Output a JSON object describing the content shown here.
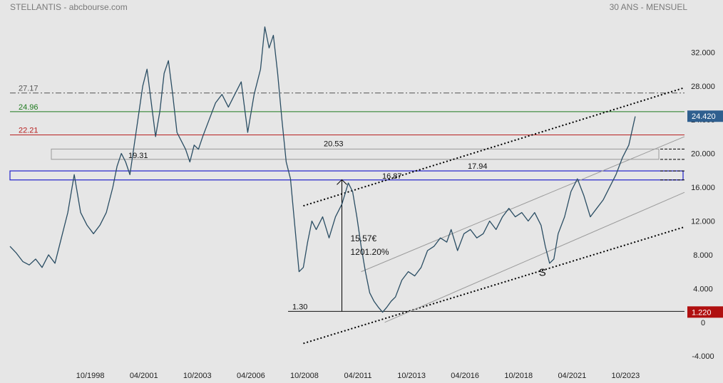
{
  "header": {
    "left": "STELLANTIS - abcbourse.com",
    "right": "30 ANS - MENSUEL"
  },
  "chart_data": {
    "type": "line",
    "ylim": [
      -5.5,
      36.5
    ],
    "xlim": [
      1995.0,
      2026.5
    ],
    "y_ticks": [
      {
        "value": 32,
        "label": "32.000"
      },
      {
        "value": 28,
        "label": "28.000"
      },
      {
        "value": 24,
        "label": "24.000"
      },
      {
        "value": 20,
        "label": "20.000"
      },
      {
        "value": 16,
        "label": "16.000"
      },
      {
        "value": 12,
        "label": "12.000"
      },
      {
        "value": 8,
        "label": "8.000"
      },
      {
        "value": 4,
        "label": "4.000"
      },
      {
        "value": 0,
        "label": "0"
      },
      {
        "value": -4,
        "label": "-4.000"
      }
    ],
    "x_ticks": [
      {
        "value": 1998.75,
        "label": "10/1998"
      },
      {
        "value": 2001.25,
        "label": "04/2001"
      },
      {
        "value": 2003.75,
        "label": "10/2003"
      },
      {
        "value": 2006.25,
        "label": "04/2006"
      },
      {
        "value": 2008.75,
        "label": "10/2008"
      },
      {
        "value": 2011.25,
        "label": "04/2011"
      },
      {
        "value": 2013.75,
        "label": "10/2013"
      },
      {
        "value": 2016.25,
        "label": "04/2016"
      },
      {
        "value": 2018.75,
        "label": "10/2018"
      },
      {
        "value": 2021.25,
        "label": "04/2021"
      },
      {
        "value": 2023.75,
        "label": "10/2023"
      }
    ],
    "series": [
      {
        "color": "#2a4d63",
        "x": [
          1995.0,
          1995.3,
          1995.6,
          1995.9,
          1996.2,
          1996.5,
          1996.8,
          1997.1,
          1997.4,
          1997.7,
          1998.0,
          1998.3,
          1998.6,
          1998.9,
          1999.2,
          1999.5,
          1999.8,
          2000.0,
          2000.2,
          2000.4,
          2000.6,
          2000.8,
          2001.0,
          2001.2,
          2001.4,
          2001.6,
          2001.8,
          2002.0,
          2002.2,
          2002.4,
          2002.6,
          2002.8,
          2003.0,
          2003.2,
          2003.4,
          2003.6,
          2003.8,
          2004.0,
          2004.3,
          2004.6,
          2004.9,
          2005.2,
          2005.5,
          2005.8,
          2006.1,
          2006.4,
          2006.7,
          2006.9,
          2007.1,
          2007.3,
          2007.5,
          2007.7,
          2007.9,
          2008.1,
          2008.3,
          2008.5,
          2008.7,
          2008.9,
          2009.1,
          2009.3,
          2009.6,
          2009.9,
          2010.2,
          2010.5,
          2010.8,
          2011.0,
          2011.2,
          2011.4,
          2011.6,
          2011.8,
          2012.0,
          2012.2,
          2012.4,
          2012.6,
          2012.8,
          2013.0,
          2013.3,
          2013.6,
          2013.9,
          2014.2,
          2014.5,
          2014.8,
          2015.1,
          2015.4,
          2015.6,
          2015.9,
          2016.2,
          2016.5,
          2016.8,
          2017.1,
          2017.4,
          2017.7,
          2018.0,
          2018.3,
          2018.6,
          2018.9,
          2019.2,
          2019.5,
          2019.8,
          2020.0,
          2020.2,
          2020.4,
          2020.6,
          2020.9,
          2021.2,
          2021.5,
          2021.8,
          2022.1,
          2022.4,
          2022.7,
          2023.0,
          2023.3,
          2023.6,
          2023.9,
          2024.2
        ],
        "values": [
          9.0,
          8.2,
          7.2,
          6.8,
          7.5,
          6.5,
          8.0,
          7.0,
          10.0,
          13.0,
          17.5,
          13.0,
          11.5,
          10.5,
          11.5,
          13.0,
          16.0,
          18.5,
          20.0,
          19.0,
          17.5,
          21.0,
          24.5,
          28.0,
          30.0,
          26.0,
          22.0,
          25.0,
          29.5,
          31.0,
          27.0,
          22.5,
          21.5,
          20.5,
          19.0,
          21.0,
          20.5,
          22.0,
          24.0,
          26.0,
          27.0,
          25.5,
          27.0,
          28.5,
          22.5,
          27.0,
          30.0,
          35.0,
          32.5,
          34.0,
          29.5,
          24.0,
          19.0,
          17.0,
          11.5,
          6.0,
          6.5,
          9.5,
          12.0,
          11.0,
          12.5,
          10.0,
          12.5,
          14.0,
          16.5,
          15.5,
          12.5,
          9.0,
          6.0,
          3.5,
          2.5,
          1.8,
          1.2,
          1.8,
          2.5,
          3.0,
          5.0,
          6.0,
          5.5,
          6.5,
          8.5,
          9.0,
          10.0,
          9.5,
          11.0,
          8.5,
          10.5,
          11.0,
          10.0,
          10.5,
          12.0,
          11.0,
          12.5,
          13.5,
          12.5,
          13.0,
          12.0,
          13.0,
          11.5,
          9.0,
          7.0,
          7.5,
          10.5,
          12.5,
          15.5,
          17.0,
          15.0,
          12.5,
          13.5,
          14.5,
          16.0,
          17.5,
          19.5,
          21.0,
          24.4
        ]
      }
    ],
    "hlines": [
      {
        "value": 27.17,
        "label": "27.17",
        "color": "#555555",
        "style": "dashdot"
      },
      {
        "value": 24.96,
        "label": "24.96",
        "color": "#1e7a1e",
        "style": "solid"
      },
      {
        "value": 22.21,
        "label": "22.21",
        "color": "#b82020",
        "style": "solid"
      },
      {
        "value": 1.3,
        "label": "1.30",
        "color": "#111111",
        "style": "solid"
      }
    ],
    "zones": [
      {
        "low": 19.31,
        "high": 20.53,
        "label_low": "19.31",
        "label_high": "20.53",
        "color": "#999999"
      },
      {
        "low": 16.87,
        "high": 17.94,
        "label_low": "16.87",
        "label_high": "17.94",
        "color": "#2222cc"
      }
    ],
    "trendlines": [
      {
        "x": [
          2008.7,
          2026.5
        ],
        "y": [
          13.8,
          27.8
        ],
        "style": "dotted"
      },
      {
        "x": [
          2008.7,
          2026.5
        ],
        "y": [
          -2.5,
          11.3
        ],
        "style": "dotted"
      },
      {
        "x": [
          2011.4,
          2026.5
        ],
        "y": [
          6.0,
          22.0
        ],
        "style": "thin"
      },
      {
        "x": [
          2012.5,
          2026.5
        ],
        "y": [
          0.0,
          15.4
        ],
        "style": "thin"
      }
    ],
    "arrow": {
      "x": 2010.5,
      "y_from": 1.3,
      "y_to": 16.9
    },
    "annotations": [
      {
        "text": "15.57€",
        "x": 2010.9,
        "y": 9.6
      },
      {
        "text": "1201.20%",
        "x": 2010.9,
        "y": 8.0
      },
      {
        "text": "S",
        "x": 2019.7,
        "y": 5.5
      }
    ],
    "price_tags": [
      {
        "value": 24.42,
        "label": "24.420",
        "bg": "#2f5f8f"
      },
      {
        "value": 1.22,
        "label": "1.220",
        "bg": "#b01010"
      }
    ]
  }
}
